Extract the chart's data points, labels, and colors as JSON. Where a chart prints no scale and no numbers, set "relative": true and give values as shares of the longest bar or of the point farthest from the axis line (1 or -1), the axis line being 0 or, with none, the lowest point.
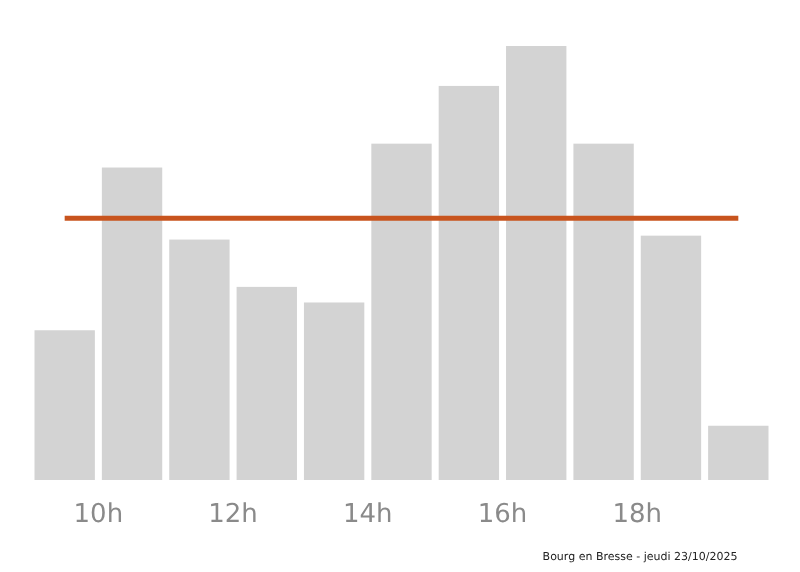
{
  "chart_data": {
    "type": "bar",
    "relative": true,
    "x": [
      9.5,
      10.5,
      11.5,
      12.5,
      13.5,
      14.5,
      15.5,
      16.5,
      17.5,
      18.5,
      19.5
    ],
    "values": [
      0.345,
      0.72,
      0.554,
      0.445,
      0.409,
      0.775,
      0.908,
      1,
      0.775,
      0.563,
      0.125
    ],
    "color": "#d3d3d3",
    "xlim": [
      9,
      20
    ],
    "xticks": [
      {
        "value": 10,
        "label": "10h"
      },
      {
        "value": 12,
        "label": "12h"
      },
      {
        "value": 14,
        "label": "14h"
      },
      {
        "value": 16,
        "label": "16h"
      },
      {
        "value": 18,
        "label": "18h"
      }
    ],
    "ref_lines": [
      {
        "axis": "y",
        "value": 0.603,
        "color": "#c8541e"
      }
    ],
    "annotations": [
      "Bourg en Bresse - jeudi 23/10/2025"
    ],
    "grid": false
  }
}
